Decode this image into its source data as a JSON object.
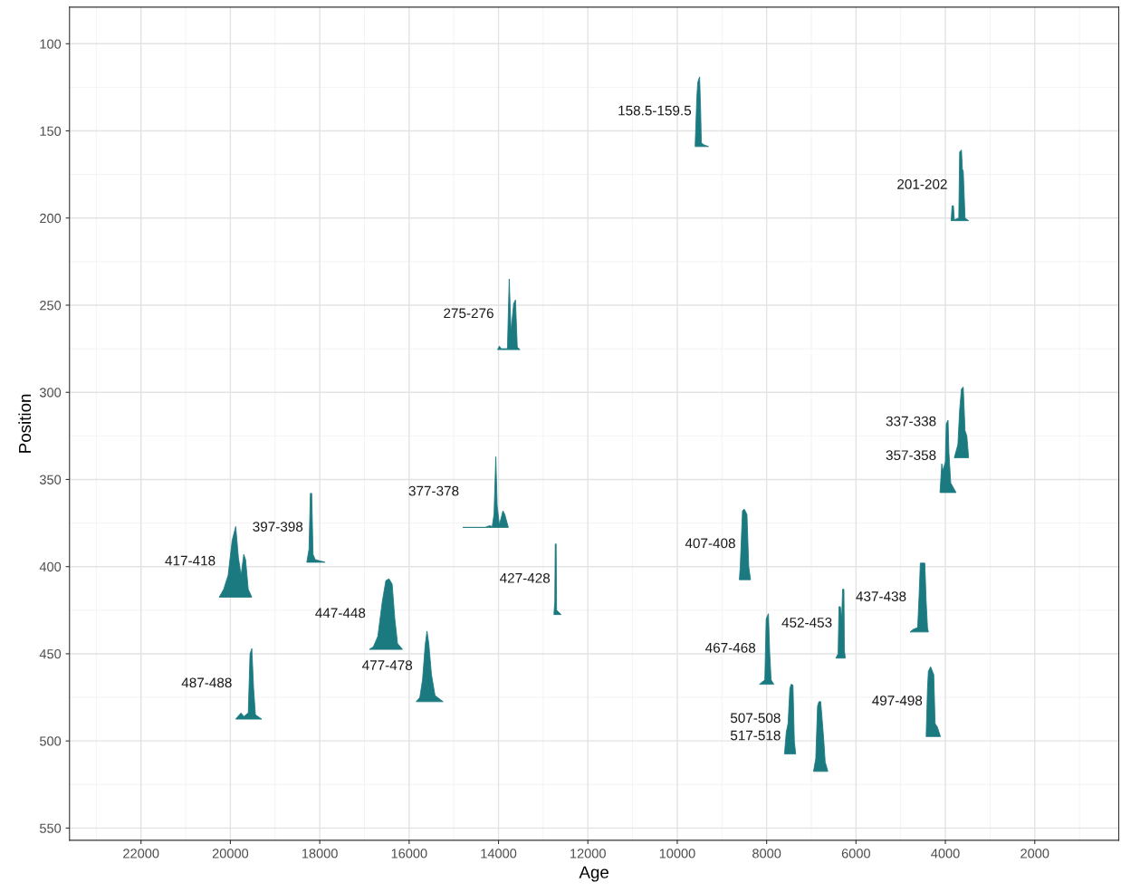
{
  "chart_data": {
    "type": "area",
    "xlabel": "Age",
    "ylabel": "Position",
    "xlim": [
      23600,
      120
    ],
    "ylim": [
      557,
      79
    ],
    "xticks": [
      22000,
      20000,
      18000,
      16000,
      14000,
      12000,
      10000,
      8000,
      6000,
      4000,
      2000
    ],
    "yticks": [
      100,
      150,
      200,
      250,
      300,
      350,
      400,
      450,
      500,
      550
    ],
    "grid": true,
    "series": [
      {
        "color": "#1b7a80",
        "x": [
          9600,
          9560,
          9540,
          9500,
          9480,
          9460,
          9400,
          9300
        ],
        "values": [
          159,
          130,
          122,
          119,
          135,
          157,
          158,
          159
        ]
      },
      {
        "color": "#1b7a80",
        "x": [
          3870,
          3850,
          3820,
          3800,
          3700,
          3680,
          3640,
          3620,
          3600,
          3560,
          3480
        ],
        "values": [
          201.5,
          193,
          193,
          201,
          200,
          162,
          161,
          172,
          173,
          200,
          201.5
        ]
      },
      {
        "color": "#1b7a80",
        "x": [
          14020,
          13980,
          13940,
          13800,
          13760,
          13720,
          13660,
          13620,
          13580,
          13520
        ],
        "values": [
          275.5,
          273.5,
          275,
          275,
          235,
          265,
          249,
          247,
          274,
          275.5
        ]
      },
      {
        "color": "#1b7a80",
        "x": [
          3800,
          3720,
          3680,
          3640,
          3600,
          3560,
          3520,
          3480
        ],
        "values": [
          337.5,
          330,
          310,
          298,
          297,
          322,
          325,
          337.5
        ]
      },
      {
        "color": "#1b7a80",
        "x": [
          4120,
          4080,
          4060,
          4000,
          3980,
          3940,
          3920,
          3880,
          3760
        ],
        "values": [
          357.5,
          341,
          345,
          340,
          318,
          316,
          335,
          352,
          357.5
        ]
      },
      {
        "color": "#1b7a80",
        "x": [
          14800,
          14300,
          14200,
          14140,
          14100,
          14060,
          14030,
          13980,
          13900,
          13860,
          13780
        ],
        "values": [
          377.5,
          377.5,
          376.5,
          377,
          370,
          337,
          365,
          376,
          368,
          370,
          377.5
        ]
      },
      {
        "color": "#1b7a80",
        "x": [
          18290,
          18240,
          18210,
          18180,
          18150,
          18100,
          17880
        ],
        "values": [
          397.5,
          390,
          358,
          358,
          393,
          396,
          397.5
        ]
      },
      {
        "color": "#1b7a80",
        "x": [
          8610,
          8590,
          8540,
          8500,
          8440,
          8400,
          8360
        ],
        "values": [
          407.5,
          400,
          368,
          367,
          370,
          400,
          407.5
        ]
      },
      {
        "color": "#1b7a80",
        "x": [
          20250,
          20150,
          20050,
          19960,
          19880,
          19820,
          19760,
          19700,
          19660,
          19600,
          19520
        ],
        "values": [
          417.5,
          413,
          405,
          385,
          377,
          395,
          405,
          393,
          396,
          413,
          417.5
        ]
      },
      {
        "color": "#1b7a80",
        "x": [
          12760,
          12740,
          12730,
          12710,
          12700,
          12600
        ],
        "values": [
          427.5,
          420,
          387,
          387,
          425,
          427.5
        ]
      },
      {
        "color": "#1b7a80",
        "x": [
          4790,
          4720,
          4620,
          4590,
          4560,
          4460,
          4430,
          4400,
          4380
        ],
        "values": [
          437.5,
          436,
          435,
          418,
          398,
          398,
          420,
          435,
          437.5
        ]
      },
      {
        "color": "#1b7a80",
        "x": [
          16890,
          16800,
          16700,
          16600,
          16520,
          16450,
          16380,
          16320,
          16260,
          16150
        ],
        "values": [
          447.5,
          446,
          440,
          420,
          408,
          407,
          410,
          430,
          444,
          447.5
        ]
      },
      {
        "color": "#1b7a80",
        "x": [
          6450,
          6400,
          6380,
          6350,
          6320,
          6300,
          6270,
          6260,
          6240
        ],
        "values": [
          452.5,
          450,
          423,
          423,
          430,
          413,
          413,
          448,
          452.5
        ]
      },
      {
        "color": "#1b7a80",
        "x": [
          8160,
          8040,
          8010,
          7960,
          7930,
          7900,
          7840
        ],
        "values": [
          467.5,
          465,
          430,
          427,
          450,
          465,
          467.5
        ]
      },
      {
        "color": "#1b7a80",
        "x": [
          15840,
          15760,
          15700,
          15640,
          15600,
          15560,
          15500,
          15420,
          15240
        ],
        "values": [
          477.5,
          475,
          465,
          445,
          437,
          444,
          462,
          474,
          477.5
        ]
      },
      {
        "color": "#1b7a80",
        "x": [
          19880,
          19800,
          19760,
          19700,
          19600,
          19560,
          19520,
          19480,
          19440,
          19300
        ],
        "values": [
          487.5,
          485,
          484,
          486,
          484,
          450,
          447,
          470,
          485,
          487.5
        ]
      },
      {
        "color": "#1b7a80",
        "x": [
          4430,
          4400,
          4380,
          4330,
          4290,
          4260,
          4230,
          4180,
          4110
        ],
        "values": [
          497.5,
          470,
          460,
          457.5,
          460,
          462,
          490,
          492,
          497.5
        ]
      },
      {
        "color": "#1b7a80",
        "x": [
          7600,
          7560,
          7520,
          7480,
          7450,
          7410,
          7380,
          7350
        ],
        "values": [
          507.5,
          495,
          490,
          470,
          467.5,
          468,
          500,
          507.5
        ]
      },
      {
        "color": "#1b7a80",
        "x": [
          6950,
          6900,
          6860,
          6830,
          6790,
          6750,
          6720,
          6690,
          6630
        ],
        "values": [
          517.5,
          510,
          480,
          477.5,
          477.5,
          490,
          500,
          512,
          517.5
        ]
      }
    ],
    "annotations": [
      "158.5-159.5",
      "201-202",
      "275-276",
      "337-338",
      "357-358",
      "377-378",
      "397-398",
      "407-408",
      "417-418",
      "427-428",
      "437-438",
      "447-448",
      "452-453",
      "467-468",
      "477-478",
      "487-488",
      "497-498",
      "507-508",
      "517-518"
    ]
  }
}
